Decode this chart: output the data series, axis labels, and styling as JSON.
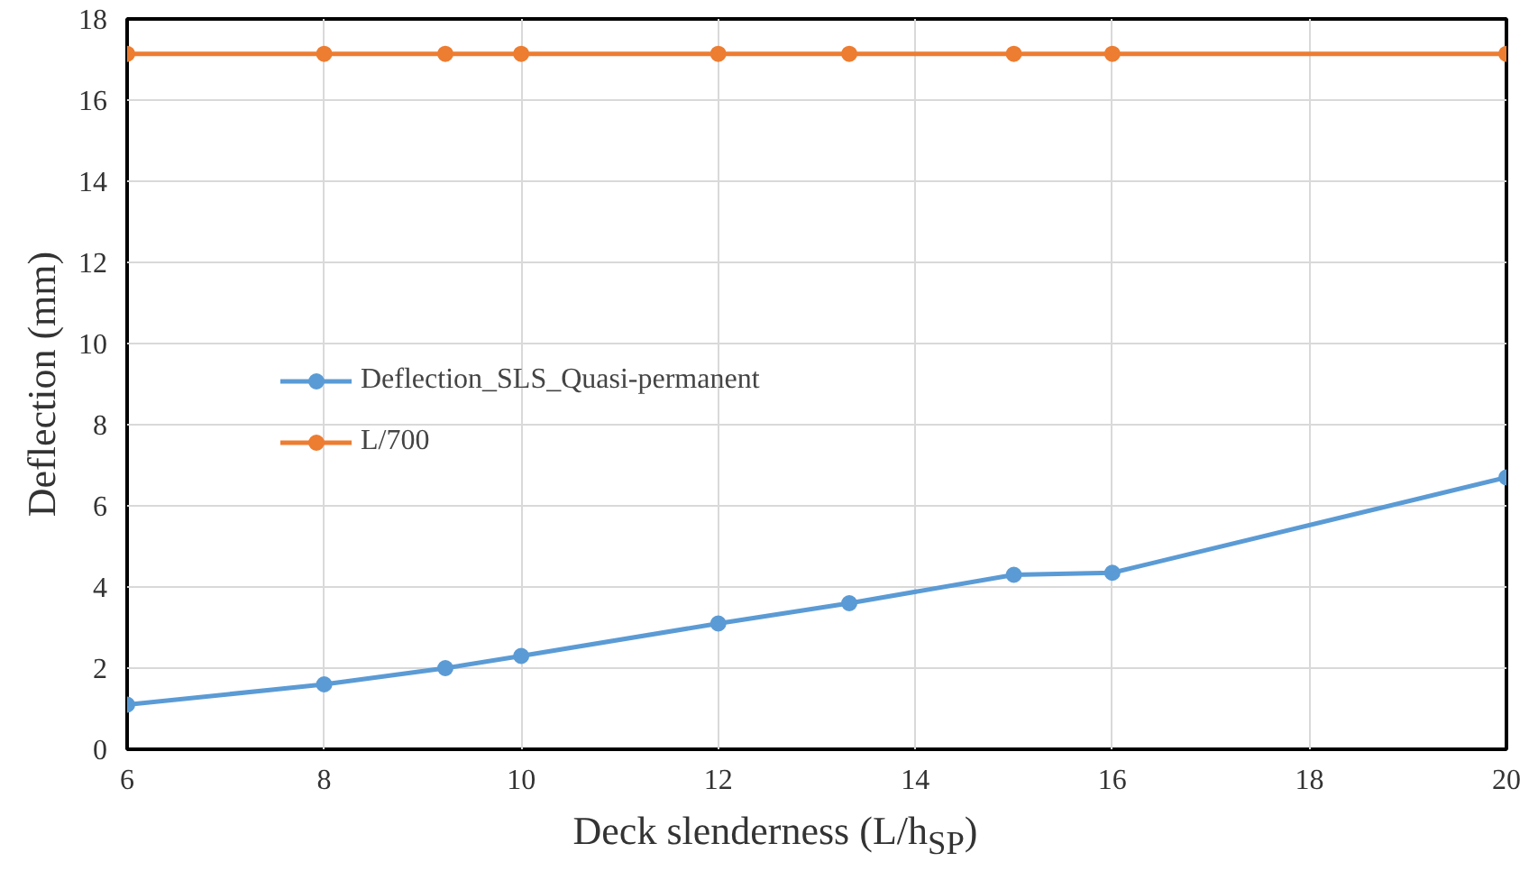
{
  "chart_data": {
    "type": "line",
    "xlabel": "Deck slenderness (L/h$_{SP}$)",
    "ylabel": "Deflection (mm)",
    "x": [
      6,
      8,
      9.23,
      10,
      12,
      13.33,
      15,
      16,
      20
    ],
    "series": [
      {
        "name": "Deflection_SLS_Quasi-permanent",
        "color": "#5b9bd5",
        "values": [
          1.1,
          1.6,
          2.0,
          2.3,
          3.1,
          3.6,
          4.3,
          4.35,
          6.7
        ]
      },
      {
        "name": "L/700",
        "color": "#ed7d31",
        "values": [
          17.14,
          17.14,
          17.14,
          17.14,
          17.14,
          17.14,
          17.14,
          17.14,
          17.14
        ]
      }
    ],
    "xlim": [
      6,
      20
    ],
    "xticks": [
      6,
      8,
      10,
      12,
      14,
      16,
      18,
      20
    ],
    "ylim": [
      0,
      18
    ],
    "yticks": [
      0,
      2,
      4,
      6,
      8,
      10,
      12,
      14,
      16,
      18
    ],
    "grid": true,
    "legend": "left",
    "marker": "circle",
    "line_style": "solid"
  }
}
